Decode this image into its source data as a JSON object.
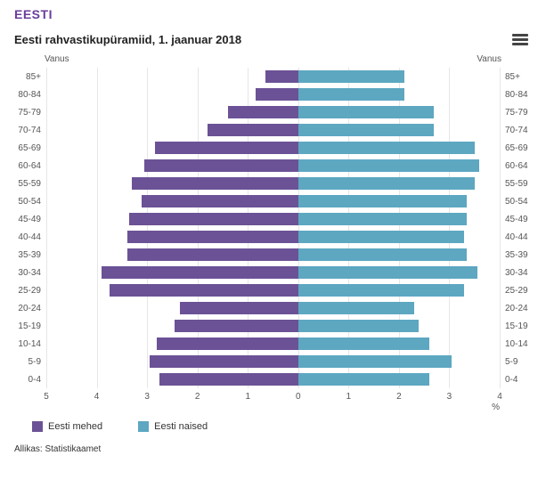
{
  "header": {
    "title": "EESTI"
  },
  "subtitle": "Eesti rahvastikupüramiid, 1. jaanuar 2018",
  "axis_label": "Vanus",
  "x_unit": "%",
  "colors": {
    "male": "#6b5296",
    "female": "#5da7c1",
    "grid": "#e6e6e6",
    "title": "#6a3d9a",
    "text": "#333333"
  },
  "chart": {
    "type": "population-pyramid",
    "x_max": 5,
    "x_ticks_left": [
      5,
      4,
      3,
      2,
      1,
      0
    ],
    "x_ticks_right": [
      0,
      1,
      2,
      3,
      4
    ],
    "age_groups": [
      "85+",
      "80-84",
      "75-79",
      "70-74",
      "65-69",
      "60-64",
      "55-59",
      "50-54",
      "45-49",
      "40-44",
      "35-39",
      "30-34",
      "25-29",
      "20-24",
      "15-19",
      "10-14",
      "5-9",
      "0-4"
    ],
    "male": [
      0.65,
      0.85,
      1.4,
      1.8,
      2.85,
      3.05,
      3.3,
      3.1,
      3.35,
      3.4,
      3.4,
      3.9,
      3.75,
      2.35,
      2.45,
      2.8,
      2.95,
      2.75
    ],
    "female": [
      2.1,
      2.1,
      2.7,
      2.7,
      3.5,
      3.6,
      3.5,
      3.35,
      3.35,
      3.3,
      3.35,
      3.55,
      3.3,
      2.3,
      2.4,
      2.6,
      3.05,
      2.6
    ]
  },
  "legend": {
    "male": "Eesti mehed",
    "female": "Eesti naised"
  },
  "source": "Allikas: Statistikaamet"
}
